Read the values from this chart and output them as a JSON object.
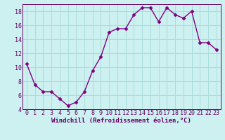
{
  "x": [
    0,
    1,
    2,
    3,
    4,
    5,
    6,
    7,
    8,
    9,
    10,
    11,
    12,
    13,
    14,
    15,
    16,
    17,
    18,
    19,
    20,
    21,
    22,
    23
  ],
  "y": [
    10.5,
    7.5,
    6.5,
    6.5,
    5.5,
    4.5,
    5.0,
    6.5,
    9.5,
    11.5,
    15.0,
    15.5,
    15.5,
    17.5,
    18.5,
    18.5,
    16.5,
    18.5,
    17.5,
    17.0,
    18.0,
    13.5,
    13.5,
    12.5
  ],
  "line_color": "#800080",
  "marker": "D",
  "marker_size": 2.5,
  "bg_color": "#cdf0f0",
  "grid_color": "#aadddd",
  "xlabel": "Windchill (Refroidissement éolien,°C)",
  "xlim": [
    -0.5,
    23.5
  ],
  "ylim": [
    4,
    19
  ],
  "yticks": [
    4,
    6,
    8,
    10,
    12,
    14,
    16,
    18
  ],
  "xticks": [
    0,
    1,
    2,
    3,
    4,
    5,
    6,
    7,
    8,
    9,
    10,
    11,
    12,
    13,
    14,
    15,
    16,
    17,
    18,
    19,
    20,
    21,
    22,
    23
  ],
  "xlabel_fontsize": 6.5,
  "tick_fontsize": 6,
  "label_color": "#660066",
  "axis_color": "#660066",
  "line_width": 1.0
}
